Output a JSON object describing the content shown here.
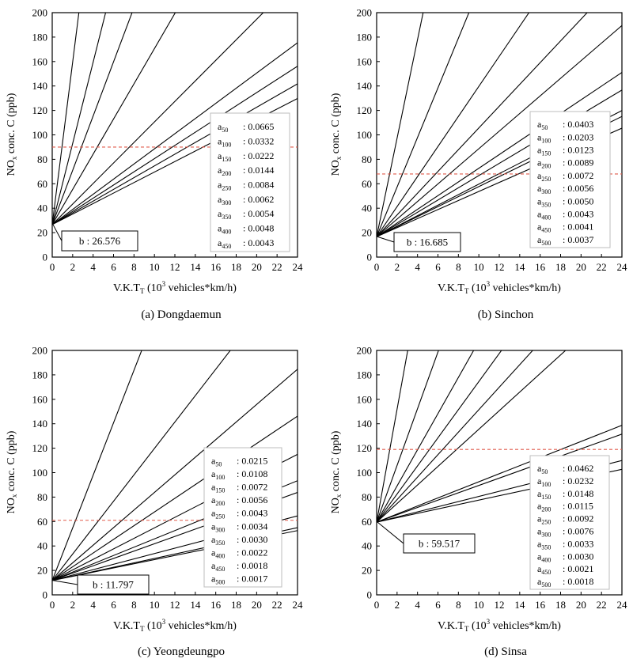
{
  "chart_data": [
    {
      "type": "line",
      "caption": "(a) Dongdaemun",
      "ylabel": "NOx conc. C (ppb)",
      "xlabel": "V.K.T_T (10^3 vehicles*km/h)",
      "xlim": [
        0,
        24
      ],
      "ylim": [
        0,
        200
      ],
      "xticks": [
        0,
        2,
        4,
        6,
        8,
        10,
        12,
        14,
        16,
        18,
        20,
        22,
        24
      ],
      "yticks": [
        0,
        20,
        40,
        60,
        80,
        100,
        120,
        140,
        160,
        180,
        200
      ],
      "intercept_label": "b : 26.576",
      "b": 26.576,
      "threshold": 90,
      "legend_position": "right",
      "series": [
        {
          "sub": "50",
          "slope": 0.0665,
          "value_label": "0.0665"
        },
        {
          "sub": "100",
          "slope": 0.0332,
          "value_label": "0.0332"
        },
        {
          "sub": "150",
          "slope": 0.0222,
          "value_label": "0.0222"
        },
        {
          "sub": "200",
          "slope": 0.0144,
          "value_label": "0.0144"
        },
        {
          "sub": "250",
          "slope": 0.0084,
          "value_label": "0.0084"
        },
        {
          "sub": "300",
          "slope": 0.0062,
          "value_label": "0.0062"
        },
        {
          "sub": "350",
          "slope": 0.0054,
          "value_label": "0.0054"
        },
        {
          "sub": "400",
          "slope": 0.0048,
          "value_label": "0.0048"
        },
        {
          "sub": "450",
          "slope": 0.0043,
          "value_label": "0.0043"
        }
      ]
    },
    {
      "type": "line",
      "caption": "(b) Sinchon",
      "ylabel": "NOx conc. C (ppb)",
      "xlabel": "V.K.T_T (10^3 vehicles*km/h)",
      "xlim": [
        0,
        24
      ],
      "ylim": [
        0,
        200
      ],
      "xticks": [
        0,
        2,
        4,
        6,
        8,
        10,
        12,
        14,
        16,
        18,
        20,
        22,
        24
      ],
      "yticks": [
        0,
        20,
        40,
        60,
        80,
        100,
        120,
        140,
        160,
        180,
        200
      ],
      "intercept_label": "b : 16.685",
      "b": 16.685,
      "threshold": 68,
      "legend_position": "right",
      "series": [
        {
          "sub": "50",
          "slope": 0.0403,
          "value_label": "0.0403"
        },
        {
          "sub": "100",
          "slope": 0.0203,
          "value_label": "0.0203"
        },
        {
          "sub": "150",
          "slope": 0.0123,
          "value_label": "0.0123"
        },
        {
          "sub": "200",
          "slope": 0.0089,
          "value_label": "0.0089"
        },
        {
          "sub": "250",
          "slope": 0.0072,
          "value_label": "0.0072"
        },
        {
          "sub": "300",
          "slope": 0.0056,
          "value_label": "0.0056"
        },
        {
          "sub": "350",
          "slope": 0.005,
          "value_label": "0.0050"
        },
        {
          "sub": "400",
          "slope": 0.0043,
          "value_label": "0.0043"
        },
        {
          "sub": "450",
          "slope": 0.0041,
          "value_label": "0.0041"
        },
        {
          "sub": "500",
          "slope": 0.0037,
          "value_label": "0.0037"
        }
      ]
    },
    {
      "type": "line",
      "caption": "(c) Yeongdeungpo",
      "ylabel": "NOx conc. C (ppb)",
      "xlabel": "V.K.T_T (10^3 vehicles*km/h)",
      "xlim": [
        0,
        24
      ],
      "ylim": [
        0,
        200
      ],
      "xticks": [
        0,
        2,
        4,
        6,
        8,
        10,
        12,
        14,
        16,
        18,
        20,
        22,
        24
      ],
      "yticks": [
        0,
        20,
        40,
        60,
        80,
        100,
        120,
        140,
        160,
        180,
        200
      ],
      "intercept_label": "b : 11.797",
      "b": 11.797,
      "threshold": 61,
      "legend_position": "right",
      "series": [
        {
          "sub": "50",
          "slope": 0.0215,
          "value_label": "0.0215"
        },
        {
          "sub": "100",
          "slope": 0.0108,
          "value_label": "0.0108"
        },
        {
          "sub": "150",
          "slope": 0.0072,
          "value_label": "0.0072"
        },
        {
          "sub": "200",
          "slope": 0.0056,
          "value_label": "0.0056"
        },
        {
          "sub": "250",
          "slope": 0.0043,
          "value_label": "0.0043"
        },
        {
          "sub": "300",
          "slope": 0.0034,
          "value_label": "0.0034"
        },
        {
          "sub": "350",
          "slope": 0.003,
          "value_label": "0.0030"
        },
        {
          "sub": "400",
          "slope": 0.0022,
          "value_label": "0.0022"
        },
        {
          "sub": "450",
          "slope": 0.0018,
          "value_label": "0.0018"
        },
        {
          "sub": "500",
          "slope": 0.0017,
          "value_label": "0.0017"
        }
      ]
    },
    {
      "type": "line",
      "caption": "(d) Sinsa",
      "ylabel": "NOx conc. C (ppb)",
      "xlabel": "V.K.T_T (10^3 vehicles*km/h)",
      "xlim": [
        0,
        24
      ],
      "ylim": [
        0,
        200
      ],
      "xticks": [
        0,
        2,
        4,
        6,
        8,
        10,
        12,
        14,
        16,
        18,
        20,
        22,
        24
      ],
      "yticks": [
        0,
        20,
        40,
        60,
        80,
        100,
        120,
        140,
        160,
        180,
        200
      ],
      "intercept_label": "b : 59.517",
      "b": 59.517,
      "threshold": 119,
      "legend_position": "right",
      "series": [
        {
          "sub": "50",
          "slope": 0.0462,
          "value_label": "0.0462"
        },
        {
          "sub": "100",
          "slope": 0.0232,
          "value_label": "0.0232"
        },
        {
          "sub": "150",
          "slope": 0.0148,
          "value_label": "0.0148"
        },
        {
          "sub": "200",
          "slope": 0.0115,
          "value_label": "0.0115"
        },
        {
          "sub": "250",
          "slope": 0.0092,
          "value_label": "0.0092"
        },
        {
          "sub": "300",
          "slope": 0.0076,
          "value_label": "0.0076"
        },
        {
          "sub": "350",
          "slope": 0.0033,
          "value_label": "0.0033"
        },
        {
          "sub": "400",
          "slope": 0.003,
          "value_label": "0.0030"
        },
        {
          "sub": "450",
          "slope": 0.0021,
          "value_label": "0.0021"
        },
        {
          "sub": "500",
          "slope": 0.0018,
          "value_label": "0.0018"
        }
      ]
    }
  ],
  "colors": {
    "lines": "#000000",
    "threshold": "#e05a4a",
    "axes": "#000000"
  }
}
